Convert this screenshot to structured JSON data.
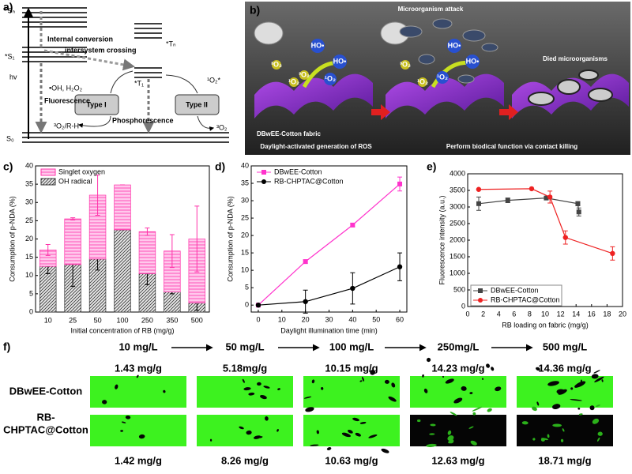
{
  "panel_labels": [
    "a)",
    "b)",
    "c)",
    "d)",
    "e)",
    "f)"
  ],
  "jablonski": {
    "levels": [
      "*Sₙ",
      "*S₁",
      "S₀",
      "*Tₙ",
      "*T₁"
    ],
    "excitation": "hv",
    "internal_conversion": "Internal conversion",
    "intersystem_crossing": "intersystem crossing",
    "fluorescence": "Fluorescence",
    "phosphorescence": "Phosphorescence",
    "type1": {
      "label": "Type I",
      "product": "•OH, H₂O₂",
      "substrate": "³O₂/R-H"
    },
    "type2": {
      "label": "Type II",
      "product": "¹O₂*",
      "substrate": "³O₂"
    }
  },
  "scheme": {
    "molecules": [
      "HO•",
      "¹O₂",
      "³O₂"
    ],
    "attack": "Microorganism attack",
    "died": "Died microorganisms",
    "fabric": "DBwEE-Cotton fabric",
    "step1": "Daylight-activated generation of ROS",
    "step2": "Perform biodical function via contact killing"
  },
  "chart_data": [
    {
      "type": "bar",
      "stacked": true,
      "categories": [
        "10",
        "25",
        "50",
        "100",
        "250",
        "350",
        "500"
      ],
      "series": [
        {
          "name": "OH radical",
          "color": "#333333",
          "fill": "hatch",
          "values": [
            12.5,
            13,
            14.5,
            22.5,
            10.5,
            5.5,
            2.5
          ],
          "errors": [
            2,
            6,
            3,
            0,
            3,
            0.5,
            2
          ]
        },
        {
          "name": "Singlet oxygen",
          "color": "#ff33aa",
          "fill": "horizontal",
          "values": [
            4.5,
            12.5,
            17.5,
            12.3,
            11.5,
            11.2,
            17.5
          ],
          "errors": [
            1.5,
            0.3,
            5.5,
            0,
            1,
            4.5,
            9
          ]
        }
      ],
      "ylim": [
        0,
        40
      ],
      "yticks": [
        0,
        5,
        10,
        15,
        20,
        25,
        30,
        35,
        40
      ],
      "ylabel": "Consumption of p-NDA (%)",
      "xlabel": "Initial concentration of RB (mg/g)",
      "legend": "top-left"
    },
    {
      "type": "line",
      "x": [
        0,
        20,
        40,
        60
      ],
      "series": [
        {
          "name": "DBwEE-Cotton",
          "color": "#ff33cc",
          "marker": "square",
          "values": [
            0,
            12.5,
            23,
            34.8
          ],
          "errors": [
            0,
            0.5,
            0.5,
            2
          ]
        },
        {
          "name": "RB-CHPTAC@Cotton",
          "color": "#000000",
          "marker": "circle",
          "values": [
            0,
            1,
            4.8,
            11
          ],
          "errors": [
            0,
            3.3,
            4.5,
            4
          ]
        }
      ],
      "xlim": [
        -3,
        63
      ],
      "xticks": [
        0,
        10,
        20,
        30,
        40,
        50,
        60
      ],
      "ylim": [
        -2,
        40
      ],
      "yticks": [
        0,
        5,
        10,
        15,
        20,
        25,
        30,
        35,
        40
      ],
      "ylabel": "Consumption of p-NDA (%)",
      "xlabel": "Daylight illumination time (min)",
      "legend": "top-left"
    },
    {
      "type": "line",
      "series": [
        {
          "name": "DBwEE-Cotton",
          "color": "#444444",
          "marker": "square",
          "x": [
            1.43,
            5.18,
            10.15,
            14.23,
            14.36
          ],
          "values": [
            3100,
            3200,
            3270,
            3100,
            2850
          ],
          "errors": [
            200,
            70,
            50,
            60,
            120
          ]
        },
        {
          "name": "RB-CHPTAC@Cotton",
          "color": "#ee2222",
          "marker": "circle",
          "x": [
            1.42,
            8.26,
            10.63,
            12.63,
            18.71
          ],
          "values": [
            3530,
            3550,
            3300,
            2080,
            1600
          ],
          "errors": [
            0,
            0,
            180,
            200,
            200
          ]
        }
      ],
      "xlim": [
        0,
        20
      ],
      "xticks": [
        0,
        2,
        4,
        6,
        8,
        10,
        12,
        14,
        16,
        18,
        20
      ],
      "ylim": [
        0,
        4000
      ],
      "yticks": [
        0,
        500,
        1000,
        1500,
        2000,
        2500,
        3000,
        3500,
        4000
      ],
      "ylabel": "Fluorescence intensity (a.u.)",
      "xlabel": "RB loading on fabric (mg/g)",
      "legend": "bottom-left"
    }
  ],
  "staining": {
    "rows": [
      [
        "DBwEE-Cotton"
      ],
      [
        "RB-",
        "CHPTAC@Cotton"
      ]
    ],
    "columns": [
      {
        "concentration": "10 mg/L",
        "loading_dbwee": "1.43 mg/g",
        "loading_rb": "1.42 mg/g"
      },
      {
        "concentration": "50 mg/L",
        "loading_dbwee": "5.18mg/g",
        "loading_rb": "8.26 mg/g"
      },
      {
        "concentration": "100 mg/L",
        "loading_dbwee": "10.15 mg/g",
        "loading_rb": "10.63 mg/g"
      },
      {
        "concentration": "250mg/L",
        "loading_dbwee": "14.23 mg/g",
        "loading_rb": "12.63 mg/g"
      },
      {
        "concentration": "500 mg/L",
        "loading_dbwee": "14.36 mg/g",
        "loading_rb": "18.71 mg/g"
      }
    ]
  }
}
